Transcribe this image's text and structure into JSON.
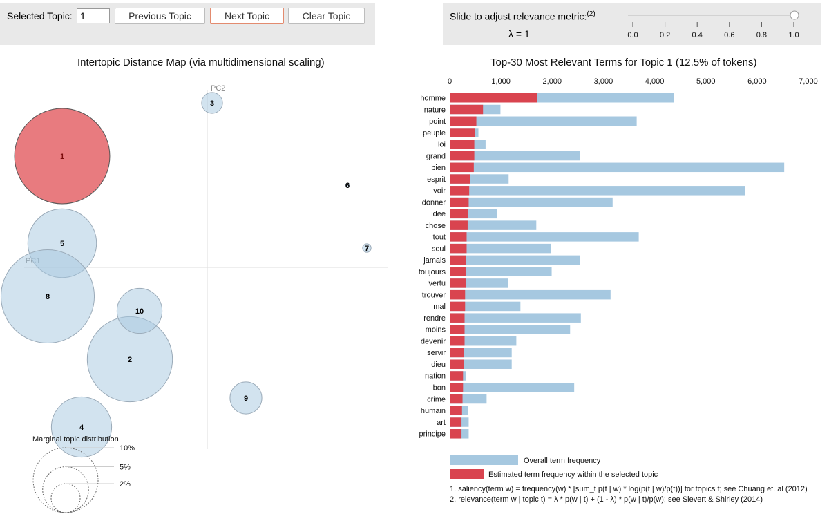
{
  "controls": {
    "selected_topic_label": "Selected Topic:",
    "selected_topic_value": "1",
    "prev_label": "Previous Topic",
    "next_label": "Next Topic",
    "clear_label": "Clear Topic",
    "slider_label": "Slide to adjust relevance metric:",
    "slider_footnote": "(2)",
    "lambda_text": "λ = 1",
    "lambda_value": 1.0,
    "slider_ticks": [
      "0.0",
      "0.2",
      "0.4",
      "0.6",
      "0.8",
      "1.0"
    ]
  },
  "colors": {
    "topic_bubble": "#a6c8e0",
    "selected_bubble": "#e25a5f",
    "overall_bar": "#a6c8e0",
    "topic_bar": "#d9444f"
  },
  "chart_data": [
    {
      "type": "scatter",
      "title": "Intertopic Distance Map (via multidimensional scaling)",
      "xlabel": "PC1",
      "ylabel": "PC2",
      "selected_topic": "1",
      "topics": [
        {
          "label": "1",
          "x": -0.3,
          "y": 0.23,
          "share": 12.5
        },
        {
          "label": "2",
          "x": -0.16,
          "y": -0.19,
          "share": 10
        },
        {
          "label": "3",
          "x": 0.01,
          "y": 0.34,
          "share": 0.6
        },
        {
          "label": "4",
          "x": -0.26,
          "y": -0.33,
          "share": 5
        },
        {
          "label": "5",
          "x": -0.3,
          "y": 0.05,
          "share": 6.5
        },
        {
          "label": "6",
          "x": 0.29,
          "y": 0.17,
          "share": 0.02
        },
        {
          "label": "7",
          "x": 0.33,
          "y": 0.04,
          "share": 0.1
        },
        {
          "label": "8",
          "x": -0.33,
          "y": -0.06,
          "share": 12
        },
        {
          "label": "9",
          "x": 0.08,
          "y": -0.27,
          "share": 1.4
        },
        {
          "label": "10",
          "x": -0.14,
          "y": -0.09,
          "share": 2.8
        }
      ],
      "legend_title": "Marginal topic distribution",
      "legend_sizes": [
        {
          "label": "2%",
          "share": 2
        },
        {
          "label": "5%",
          "share": 5
        },
        {
          "label": "10%",
          "share": 10
        }
      ]
    },
    {
      "type": "bar",
      "orientation": "horizontal",
      "title": "Top-30 Most Relevant Terms for Topic 1 (12.5% of tokens)",
      "xlim": [
        0,
        7000
      ],
      "ticks": [
        "0",
        "1,000",
        "2,000",
        "3,000",
        "4,000",
        "5,000",
        "6,000",
        "7,000"
      ],
      "categories": [
        "homme",
        "nature",
        "point",
        "peuple",
        "loi",
        "grand",
        "bien",
        "esprit",
        "voir",
        "donner",
        "idée",
        "chose",
        "tout",
        "seul",
        "jamais",
        "toujours",
        "vertu",
        "trouver",
        "mal",
        "rendre",
        "moins",
        "devenir",
        "servir",
        "dieu",
        "nation",
        "bon",
        "crime",
        "humain",
        "art",
        "principe"
      ],
      "series": [
        {
          "name": "Overall term frequency",
          "values": [
            4380,
            990,
            3650,
            560,
            700,
            2540,
            6530,
            1150,
            5770,
            3180,
            930,
            1690,
            3690,
            1970,
            2540,
            1990,
            1140,
            3140,
            1380,
            2560,
            2350,
            1300,
            1210,
            1210,
            310,
            2430,
            720,
            360,
            370,
            370
          ]
        },
        {
          "name": "Estimated term frequency within the selected topic",
          "values": [
            1710,
            650,
            520,
            490,
            480,
            480,
            470,
            400,
            380,
            370,
            360,
            350,
            330,
            330,
            320,
            310,
            310,
            300,
            300,
            290,
            290,
            290,
            280,
            280,
            260,
            260,
            250,
            240,
            230,
            230
          ]
        }
      ]
    }
  ],
  "notes": [
    "1. saliency(term w) = frequency(w) * [sum_t p(t | w) * log(p(t | w)/p(t))] for topics t; see Chuang et. al (2012)",
    "2. relevance(term w | topic t) = λ * p(w | t) + (1 - λ) * p(w | t)/p(w); see Sievert & Shirley (2014)"
  ]
}
